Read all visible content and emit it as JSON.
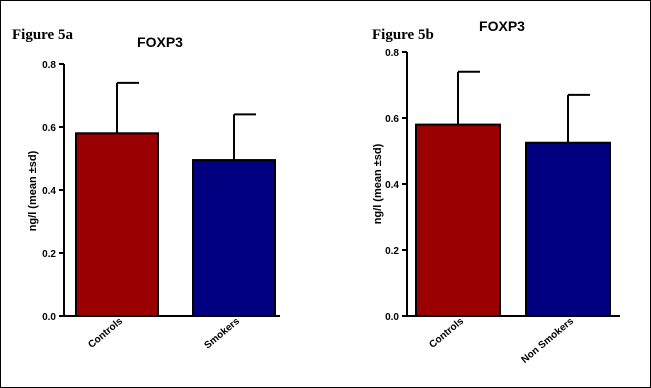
{
  "chart_data": [
    {
      "type": "bar",
      "figure_label": "Figure 5a",
      "title": "FOXP3",
      "ylabel": "ng/l (mean ±sd)",
      "xlabel": "",
      "ylim": [
        0,
        0.8
      ],
      "yticks": [
        "0.0",
        "0.2",
        "0.4",
        "0.6",
        "0.8"
      ],
      "categories": [
        "Controls",
        "Smokers"
      ],
      "values": [
        0.58,
        0.495
      ],
      "sd": [
        0.16,
        0.145
      ],
      "colors": [
        "#9b0000",
        "#000080"
      ]
    },
    {
      "type": "bar",
      "figure_label": "Figure 5b",
      "title": "FOXP3",
      "ylabel": "ng/l (mean ±sd)",
      "xlabel": "",
      "ylim": [
        0,
        0.8
      ],
      "yticks": [
        "0.0",
        "0.2",
        "0.4",
        "0.6",
        "0.8"
      ],
      "categories": [
        "Controls",
        "Non Smokers"
      ],
      "values": [
        0.58,
        0.525
      ],
      "sd": [
        0.16,
        0.145
      ],
      "colors": [
        "#9b0000",
        "#000080"
      ]
    }
  ]
}
